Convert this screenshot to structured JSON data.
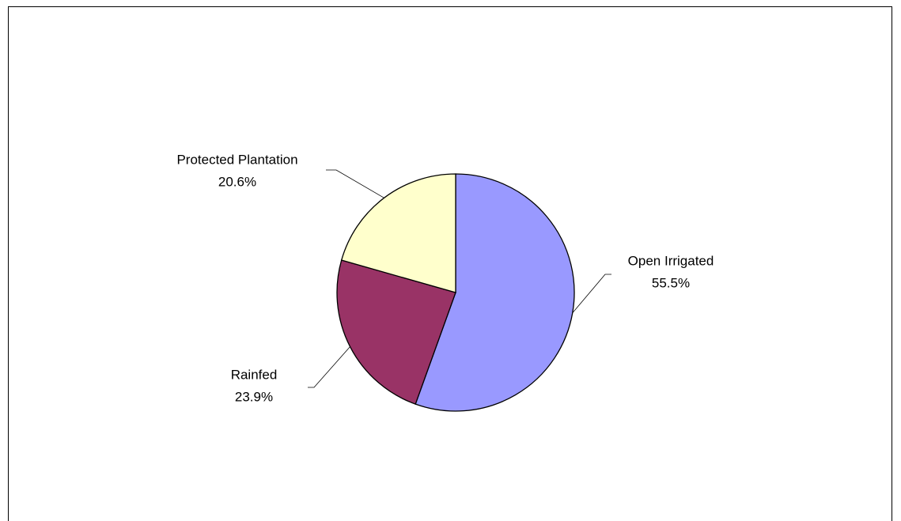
{
  "chart_data": {
    "type": "pie",
    "categories": [
      "Open Irrigated",
      "Rainfed",
      "Protected Plantation"
    ],
    "values": [
      55.5,
      23.9,
      20.6
    ],
    "value_labels": [
      "55.5%",
      "23.9%",
      "20.6%"
    ],
    "colors": [
      "#9999ff",
      "#993366",
      "#ffffcc"
    ]
  }
}
